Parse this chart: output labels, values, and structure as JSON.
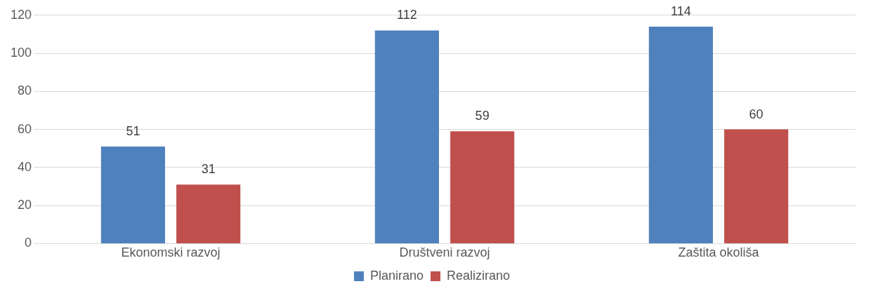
{
  "chart_data": {
    "type": "bar",
    "categories": [
      "Ekonomski razvoj",
      "Društveni razvoj",
      "Zaštita okoliša"
    ],
    "series": [
      {
        "name": "Planirano",
        "color": "#4f81bd",
        "values": [
          51,
          112,
          114
        ]
      },
      {
        "name": "Realizirano",
        "color": "#c0504d",
        "values": [
          31,
          59,
          60
        ]
      }
    ],
    "ylim": [
      0,
      120
    ],
    "yticks": [
      0,
      20,
      40,
      60,
      80,
      100,
      120
    ],
    "grid": "y",
    "legend": "bottom",
    "data_labels": true
  }
}
